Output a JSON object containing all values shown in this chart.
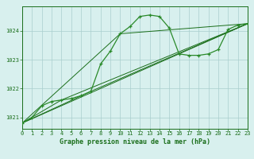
{
  "title": "Graphe pression niveau de la mer (hPa)",
  "bg_color": "#d8f0ee",
  "grid_color": "#aacece",
  "line_color": "#1a6e1a",
  "line_color2": "#2a8a2a",
  "xlim": [
    0,
    23
  ],
  "ylim": [
    1020.6,
    1024.85
  ],
  "yticks": [
    1021,
    1022,
    1023,
    1024
  ],
  "xticks": [
    0,
    1,
    2,
    3,
    4,
    5,
    6,
    7,
    8,
    9,
    10,
    11,
    12,
    13,
    14,
    15,
    16,
    17,
    18,
    19,
    20,
    21,
    22,
    23
  ],
  "series1_x": [
    0,
    1,
    2,
    3,
    4,
    5,
    6,
    7,
    8,
    9,
    10,
    11,
    12,
    13,
    14,
    15,
    16,
    17,
    18,
    19,
    20,
    21,
    22,
    23
  ],
  "series1_y": [
    1020.8,
    1021.0,
    1021.4,
    1021.55,
    1021.6,
    1021.65,
    1021.75,
    1021.9,
    1022.85,
    1023.3,
    1023.9,
    1024.15,
    1024.5,
    1024.55,
    1024.5,
    1024.1,
    1023.2,
    1023.15,
    1023.15,
    1023.2,
    1023.35,
    1024.05,
    1024.2,
    1024.25
  ],
  "series2_x": [
    0,
    16,
    23
  ],
  "series2_y": [
    1020.8,
    1023.2,
    1024.25
  ],
  "series3_x": [
    0,
    4,
    23
  ],
  "series3_y": [
    1020.8,
    1021.6,
    1024.25
  ],
  "series4_x": [
    0,
    7,
    23
  ],
  "series4_y": [
    1020.8,
    1021.9,
    1024.25
  ],
  "series5_x": [
    0,
    10,
    23
  ],
  "series5_y": [
    1020.8,
    1023.9,
    1024.25
  ]
}
